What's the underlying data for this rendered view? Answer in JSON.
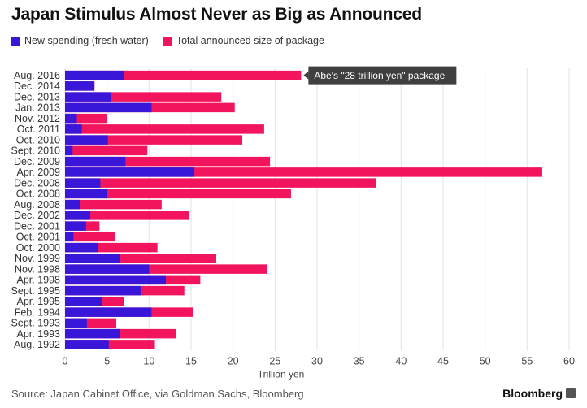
{
  "title": "Japan Stimulus Almost Never as Big as Announced",
  "legend": {
    "new_spending": "New spending (fresh water)",
    "total": "Total announced size of package"
  },
  "colors": {
    "new_spending": "#3a16d9",
    "total": "#f2155e",
    "grid": "#e3e3e3",
    "annotation_bg": "#3f3f3f",
    "annotation_text": "#ffffff"
  },
  "source": "Source: Japan Cabinet Office, via Goldman Sachs, Bloomberg",
  "brand": "Bloomberg",
  "chart_data": {
    "type": "bar",
    "orientation": "horizontal",
    "stacked": "overlay",
    "xlabel": "Trillion yen",
    "xlim": [
      0,
      60
    ],
    "xticks": [
      0,
      5,
      10,
      15,
      20,
      25,
      30,
      35,
      40,
      45,
      50,
      55,
      60
    ],
    "grid": true,
    "legend_position": "top-left",
    "categories": [
      "Aug. 2016",
      "Dec. 2014",
      "Dec. 2013",
      "Jan. 2013",
      "Nov. 2012",
      "Oct. 2011",
      "Oct. 2010",
      "Sept. 2010",
      "Dec. 2009",
      "Apr. 2009",
      "Dec. 2008",
      "Oct. 2008",
      "Aug. 2008",
      "Dec. 2002",
      "Dec. 2001",
      "Oct. 2001",
      "Oct. 2000",
      "Nov. 1999",
      "Nov. 1998",
      "Apr. 1998",
      "Sept. 1995",
      "Apr. 1995",
      "Feb. 1994",
      "Sept. 1993",
      "Apr. 1993",
      "Aug. 1992"
    ],
    "series": [
      {
        "name": "New spending (fresh water)",
        "values": [
          7.0,
          3.5,
          5.5,
          10.3,
          1.4,
          2.0,
          5.1,
          0.9,
          7.2,
          15.4,
          4.2,
          5.0,
          1.8,
          3.0,
          2.5,
          1.0,
          3.9,
          6.5,
          10.0,
          12.0,
          9.0,
          4.4,
          10.3,
          2.6,
          6.5,
          5.2
        ]
      },
      {
        "name": "Total announced size of package",
        "values": [
          28.1,
          3.5,
          18.6,
          20.2,
          5.0,
          23.7,
          21.1,
          9.8,
          24.4,
          56.8,
          37.0,
          26.9,
          11.5,
          14.8,
          4.1,
          5.9,
          11.0,
          18.0,
          24.0,
          16.1,
          14.2,
          7.0,
          15.2,
          6.1,
          13.2,
          10.7
        ]
      }
    ],
    "annotations": [
      {
        "category": "Aug. 2016",
        "text": "Abe's \"28 trillion yen\" package"
      }
    ]
  }
}
